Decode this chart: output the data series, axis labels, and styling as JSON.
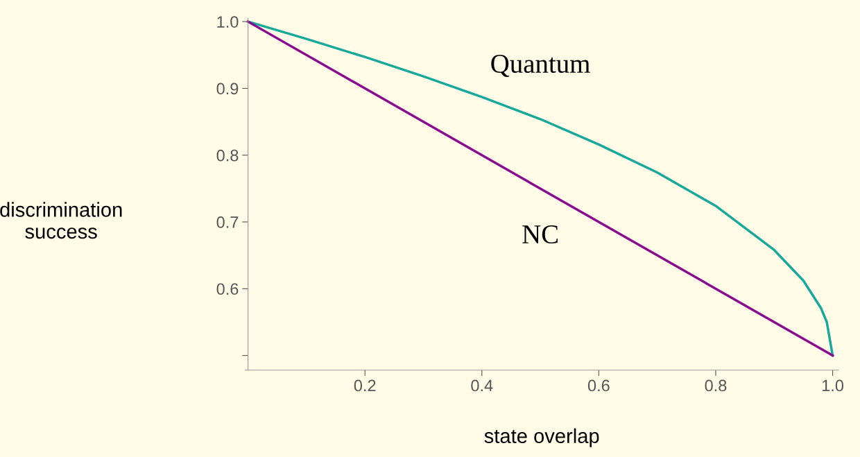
{
  "chart_data": {
    "type": "line",
    "xlabel": "state overlap",
    "ylabel": "discrimination\nsuccess",
    "xlim": [
      -0.005,
      1.01
    ],
    "ylim": [
      0.478,
      1.005
    ],
    "xticks": [
      0.2,
      0.4,
      0.6,
      0.8,
      {
        "value": 1.0,
        "label": "1.0"
      }
    ],
    "yticks": [
      {
        "value": 0.5,
        "label": null
      },
      0.6,
      0.7,
      0.8,
      0.9,
      {
        "value": 1.0,
        "label": "1.0"
      }
    ],
    "grid": false,
    "legend": false,
    "marker": "none",
    "line_style": "solid",
    "series": [
      {
        "name": "Quantum",
        "color": "#17a99b",
        "x": [
          0,
          0.1,
          0.2,
          0.3,
          0.4,
          0.5,
          0.6,
          0.7,
          0.8,
          0.9,
          0.95,
          0.98,
          0.99,
          1.0
        ],
        "values": [
          1.0,
          0.974,
          0.947,
          0.918,
          0.887,
          0.854,
          0.816,
          0.774,
          0.724,
          0.658,
          0.612,
          0.571,
          0.55,
          0.5
        ]
      },
      {
        "name": "NC",
        "color": "#8a0c8e",
        "x": [
          0,
          1.0
        ],
        "values": [
          1.0,
          0.5
        ]
      }
    ]
  }
}
